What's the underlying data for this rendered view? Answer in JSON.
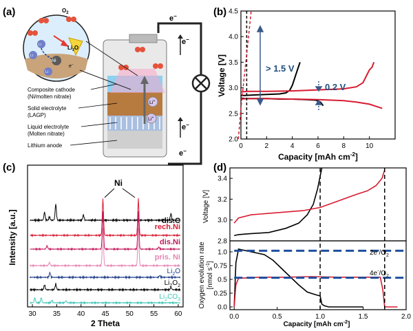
{
  "panels": {
    "a": {
      "label": "(a)"
    },
    "b": {
      "label": "(b)"
    },
    "c": {
      "label": "(c)"
    },
    "d": {
      "label": "(d)"
    }
  },
  "panel_a": {
    "o2": "O",
    "o2_sub": "2",
    "li_ion": "Li",
    "li2o": "Li",
    "li2o_sub": "2",
    "li2o_tail": "O",
    "ni": "Ni",
    "electron": "e",
    "composite_cathode": "Composite cathode",
    "composite_cathode_2": "(Ni/molten nitrate)",
    "solid_electrolyte": "Solid electrolyte",
    "solid_electrolyte_2": "(LAGP)",
    "liquid_electrolyte": "Liquid electrolyte",
    "liquid_electrolyte_2": "(Molten nitrate)",
    "lithium_anode": "Lithium anode",
    "colors": {
      "circle_fill": "#dceefb",
      "foam": "#c9a37a",
      "sep": "#b77a3f",
      "cathode_blue": "#8fd0f0"
    }
  },
  "panel_b": {
    "ylabel": "Voltage [V]",
    "xlabel": "Capacity [mAh cm",
    "xlabel_sup": "-2",
    "xlabel_end": "]",
    "annot_15": "> 1.5 V",
    "annot_02": "0.2 V"
  },
  "panel_c": {
    "ylabel": "Intensity [a.u.]",
    "xlabel": "2 Theta",
    "ni_label": "Ni",
    "traces": [
      "dis.C",
      "rech.Ni",
      "dis.Ni",
      "pris. Ni"
    ],
    "refs": [
      "Li",
      "Li",
      "Li"
    ],
    "ref_tails": [
      "O",
      "O",
      "CO"
    ],
    "ref_subs": [
      "2",
      "2",
      "2"
    ],
    "ref_sub2": [
      "",
      "2",
      "3"
    ]
  },
  "panel_d": {
    "ylabel_top": "Voltage [V]",
    "ylabel_bot_1": "Oxygen evolution rate",
    "ylabel_bot_2": "[nmol s",
    "ylabel_bot_sup": "-1",
    "ylabel_bot_end": "]",
    "xlabel": "Capacity [mAh cm",
    "xlabel_sup": "-2",
    "xlabel_end": "]",
    "line_2e": "2e",
    "line_2e_tail": "/O",
    "line_4e": "4e",
    "line_4e_tail": "/O",
    "sub2": "2",
    "sup_minus": "-"
  },
  "chart_data": [
    {
      "panel": "b",
      "type": "line",
      "xlabel": "Capacity [mAh cm-2]",
      "ylabel": "Voltage [V]",
      "xlim": [
        0,
        12
      ],
      "ylim": [
        2.0,
        4.5
      ],
      "xticks": [
        0,
        2,
        4,
        6,
        8,
        10
      ],
      "yticks": [
        2.0,
        2.5,
        3.0,
        3.5,
        4.0,
        4.5
      ],
      "series": [
        {
          "color": "#000000",
          "style": "solid",
          "x": [
            0,
            0.3,
            1,
            2,
            3,
            3.5,
            3.8,
            4.0,
            4.2,
            4.4,
            4.6
          ],
          "y": [
            2.85,
            2.85,
            2.86,
            2.87,
            2.88,
            2.9,
            2.95,
            3.05,
            3.2,
            3.35,
            3.5
          ]
        },
        {
          "color": "#000000",
          "style": "solid",
          "x": [
            0,
            0.3,
            1,
            2,
            3,
            4,
            5,
            5.8,
            6.2,
            6.4
          ],
          "y": [
            2.8,
            2.79,
            2.79,
            2.79,
            2.78,
            2.78,
            2.77,
            2.76,
            2.72,
            2.65
          ]
        },
        {
          "color": "#d81b31",
          "style": "solid",
          "x": [
            0,
            0.5,
            2,
            4,
            6,
            8,
            9,
            9.5,
            9.8,
            10.0,
            10.2,
            10.35
          ],
          "y": [
            2.92,
            2.93,
            2.93,
            2.94,
            2.96,
            2.98,
            3.02,
            3.1,
            3.25,
            3.35,
            3.4,
            3.5
          ]
        },
        {
          "color": "#d81b31",
          "style": "solid",
          "x": [
            0,
            0.5,
            2,
            4,
            6,
            8,
            9,
            10,
            10.5,
            11.0
          ],
          "y": [
            2.78,
            2.79,
            2.79,
            2.78,
            2.77,
            2.75,
            2.72,
            2.68,
            2.64,
            2.6
          ]
        },
        {
          "color": "#000000",
          "style": "dashed",
          "x": [
            0.45,
            0.45,
            0.45
          ],
          "y": [
            2.0,
            3.2,
            4.5
          ]
        },
        {
          "color": "#d81b31",
          "style": "dashed",
          "x": [
            -0.2,
            0.0,
            0.25,
            0.55,
            0.8
          ],
          "y": [
            2.0,
            2.6,
            3.2,
            3.9,
            4.5
          ]
        }
      ]
    },
    {
      "panel": "c",
      "type": "line",
      "xlabel": "2 Theta",
      "ylabel": "Intensity [a.u.]",
      "xlim": [
        29,
        61
      ],
      "xticks": [
        30,
        35,
        40,
        45,
        50,
        55,
        60
      ],
      "series": [
        {
          "name": "dis.C",
          "color": "#000000",
          "peaks": [
            [
              32.5,
              1.5
            ],
            [
              33.5,
              0.6
            ],
            [
              34.8,
              3.0
            ],
            [
              40.5,
              1.0
            ],
            [
              58.5,
              1.2
            ]
          ]
        },
        {
          "name": "rech.Ni",
          "color": "#d81b31",
          "peaks": [
            [
              44.5,
              9
            ],
            [
              51.8,
              9
            ]
          ]
        },
        {
          "name": "dis.Ni",
          "color": "#c2185b",
          "peaks": [
            [
              33.0,
              0.8
            ],
            [
              44.5,
              9
            ],
            [
              51.8,
              9
            ],
            [
              56.0,
              0.5
            ]
          ]
        },
        {
          "name": "pris. Ni",
          "color": "#e786b4",
          "peaks": [
            [
              33.5,
              0.8
            ],
            [
              44.5,
              9
            ],
            [
              51.8,
              9
            ]
          ]
        },
        {
          "name": "Li2O",
          "color": "#1f3c88",
          "peaks": [
            [
              33.6,
              1.0
            ],
            [
              56.2,
              0.4
            ]
          ]
        },
        {
          "name": "Li2O2",
          "color": "#000000",
          "peaks": [
            [
              32.5,
              1.0
            ],
            [
              34.8,
              1.2
            ],
            [
              58.5,
              0.5
            ]
          ]
        },
        {
          "name": "Li2CO3",
          "color": "#3cc4b6",
          "peaks": [
            [
              30.5,
              1.2
            ],
            [
              31.8,
              1.3
            ],
            [
              34.0,
              0.6
            ],
            [
              36.9,
              0.5
            ]
          ]
        }
      ]
    },
    {
      "panel": "d",
      "type": "line",
      "xlabel": "Capacity [mAh cm-2]",
      "xlim": [
        -0.05,
        2.0
      ],
      "xticks": [
        0.0,
        0.5,
        1.0,
        1.5,
        2.0
      ],
      "top": {
        "ylabel": "Voltage [V]",
        "ylim": [
          2.8,
          3.5
        ],
        "yticks": [
          2.8,
          3.0,
          3.2,
          3.4
        ],
        "series": [
          {
            "color": "#000000",
            "x": [
              0,
              0.05,
              0.2,
              0.4,
              0.6,
              0.75,
              0.85,
              0.92,
              0.97,
              1.0,
              1.02
            ],
            "y": [
              2.85,
              2.86,
              2.87,
              2.88,
              2.92,
              2.97,
              3.05,
              3.15,
              3.3,
              3.42,
              3.5
            ]
          },
          {
            "color": "#d81b31",
            "x": [
              0,
              0.05,
              0.2,
              0.5,
              0.8,
              1.0,
              1.2,
              1.4,
              1.55,
              1.65,
              1.72,
              1.75
            ],
            "y": [
              2.97,
              3.02,
              3.05,
              3.07,
              3.09,
              3.12,
              3.18,
              3.24,
              3.28,
              3.33,
              3.4,
              3.48
            ]
          }
        ]
      },
      "bottom": {
        "ylim": [
          -0.05,
          1.2
        ],
        "yticks": [
          0.0,
          0.25,
          0.5,
          0.75,
          1.0
        ],
        "series": [
          {
            "color": "#000000",
            "x": [
              0,
              0.02,
              0.05,
              0.2,
              0.35,
              0.45,
              0.55,
              0.65,
              0.75,
              0.85,
              0.95,
              1.0,
              1.02,
              1.05,
              1.1,
              1.3,
              1.5
            ],
            "y": [
              0.0,
              0.8,
              1.05,
              1.0,
              0.95,
              0.85,
              0.7,
              0.55,
              0.4,
              0.27,
              0.22,
              0.2,
              0.05,
              0.02,
              0.0,
              0.0,
              0.0
            ]
          },
          {
            "color": "#d81b31",
            "x": [
              0,
              0.02,
              0.05,
              0.3,
              0.6,
              0.9,
              1.2,
              1.5,
              1.7,
              1.73,
              1.75,
              1.8,
              1.9
            ],
            "y": [
              0.0,
              0.4,
              0.52,
              0.54,
              0.54,
              0.55,
              0.54,
              0.54,
              0.54,
              0.3,
              0.0,
              0.0,
              0.0
            ]
          },
          {
            "color": "#1f4f9e",
            "style": "dashed",
            "x": [
              0,
              2.0
            ],
            "y": [
              1.02,
              1.02
            ]
          },
          {
            "color": "#1f4f9e",
            "style": "dashed",
            "x": [
              0,
              2.0
            ],
            "y": [
              0.53,
              0.53
            ]
          },
          {
            "color": "#000000",
            "style": "dashed",
            "x": [
              1.0,
              1.0
            ],
            "y": [
              -0.05,
              1.2
            ]
          },
          {
            "color": "#000000",
            "style": "dashed",
            "x": [
              1.75,
              1.75
            ],
            "y": [
              -0.05,
              1.2
            ]
          }
        ]
      }
    }
  ]
}
